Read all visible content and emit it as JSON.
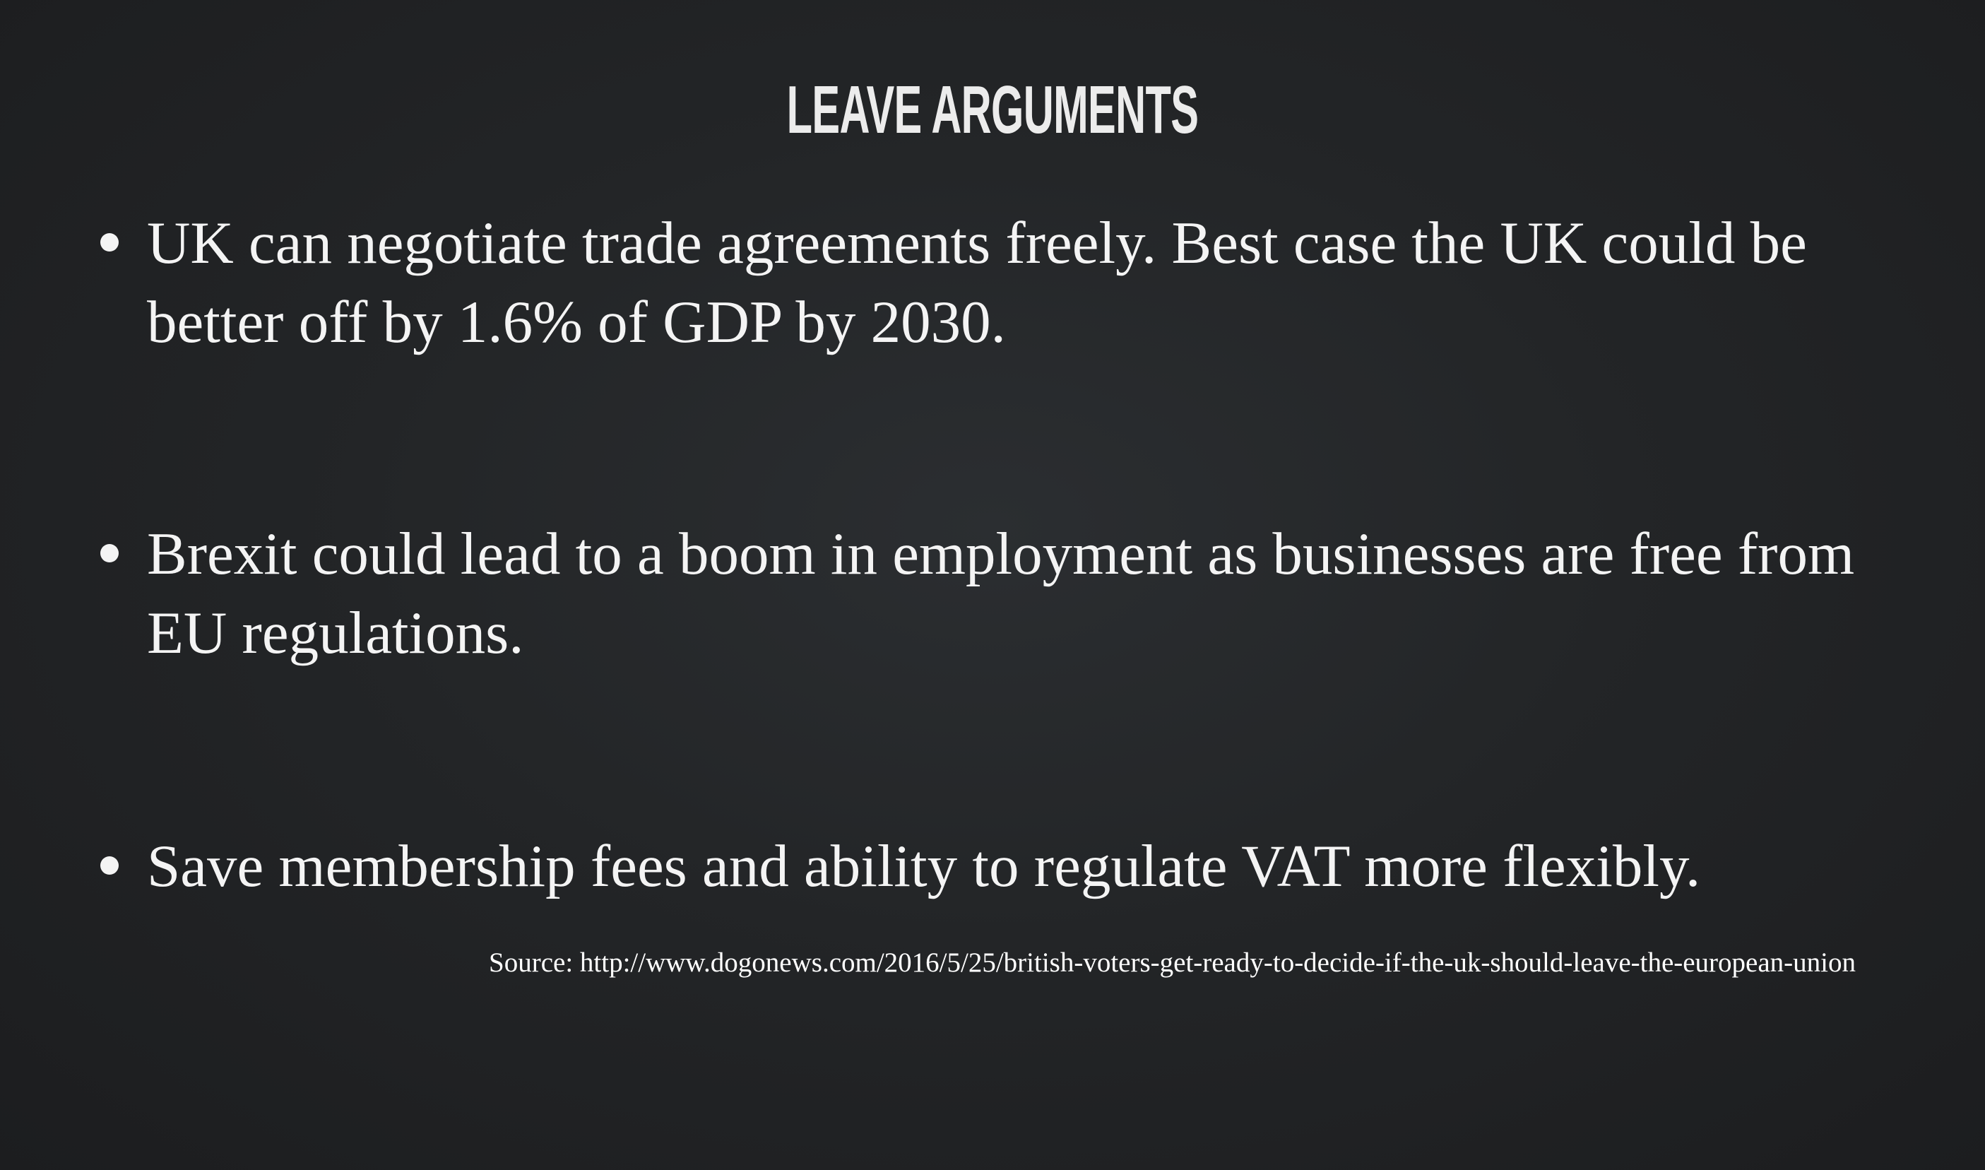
{
  "slide": {
    "title": "LEAVE ARGUMENTS",
    "bullets": [
      "UK can negotiate trade agreements freely. Best case the UK could be better off by 1.6% of GDP by 2030.",
      "Brexit could lead to a boom in employment as businesses are free from EU regulations.",
      "Save membership fees and ability to regulate VAT more flexibly."
    ],
    "source": "Source: http://www.dogonews.com/2016/5/25/british-voters-get-ready-to-decide-if-the-uk-should-leave-the-european-union"
  },
  "colors": {
    "background": "#232527",
    "text": "#f2f2f2"
  }
}
